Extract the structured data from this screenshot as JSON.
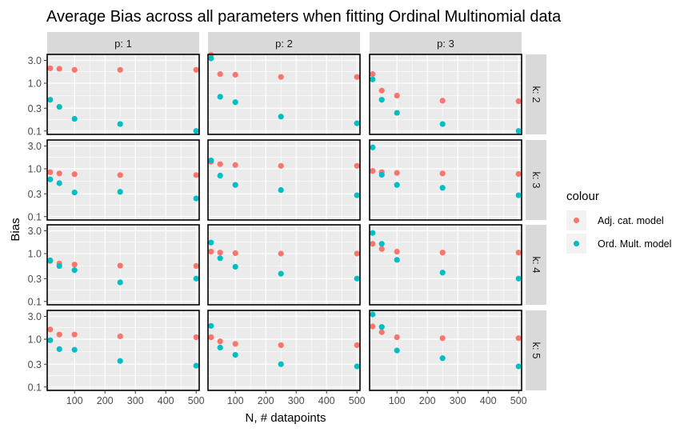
{
  "chart_data": {
    "type": "scatter",
    "title": "Average Bias across all parameters when fitting Ordinal Multinomial data",
    "xlabel": "N, # datapoints",
    "ylabel": "Bias",
    "y_scale": "log10",
    "x_range": [
      10,
      510
    ],
    "y_range": [
      0.085,
      4.0
    ],
    "x_ticks": [
      100,
      200,
      300,
      400,
      500
    ],
    "y_ticks": [
      {
        "value": 0.1,
        "label": "0.1"
      },
      {
        "value": 0.3,
        "label": "0.3"
      },
      {
        "value": 1.0,
        "label": "1.0"
      },
      {
        "value": 3.0,
        "label": "3.0"
      }
    ],
    "col_facet_labels": [
      "p: 1",
      "p: 2",
      "p: 3"
    ],
    "row_facet_labels": [
      "k: 2",
      "k: 3",
      "k: 4",
      "k: 5"
    ],
    "legend": {
      "title": "colour",
      "position": "right",
      "entries": [
        {
          "name": "Adj. cat. model",
          "color": "#F8766D"
        },
        {
          "name": "Ord. Mult. model",
          "color": "#00BFC4"
        }
      ]
    },
    "grid": true,
    "x": [
      20,
      50,
      100,
      250,
      500
    ],
    "panels": [
      {
        "k": 2,
        "p": 1,
        "adj": [
          2.05,
          2.0,
          1.9,
          1.9,
          1.9
        ],
        "ord": [
          0.45,
          0.32,
          0.18,
          0.14,
          0.1
        ]
      },
      {
        "k": 2,
        "p": 2,
        "adj": [
          3.9,
          1.55,
          1.5,
          1.35,
          1.35
        ],
        "ord": [
          3.3,
          0.52,
          0.4,
          0.2,
          0.145
        ]
      },
      {
        "k": 2,
        "p": 3,
        "adj": [
          1.55,
          0.7,
          0.55,
          0.43,
          0.42
        ],
        "ord": [
          1.2,
          0.45,
          0.24,
          0.14,
          0.1
        ]
      },
      {
        "k": 3,
        "p": 1,
        "adj": [
          0.85,
          0.8,
          0.77,
          0.74,
          0.74
        ],
        "ord": [
          0.6,
          0.5,
          0.32,
          0.33,
          0.24
        ]
      },
      {
        "k": 3,
        "p": 2,
        "adj": [
          1.4,
          1.25,
          1.2,
          1.15,
          1.15
        ],
        "ord": [
          1.5,
          0.72,
          0.46,
          0.36,
          0.28
        ]
      },
      {
        "k": 3,
        "p": 3,
        "adj": [
          0.9,
          0.85,
          0.82,
          0.8,
          0.78
        ],
        "ord": [
          2.8,
          0.75,
          0.46,
          0.4,
          0.28
        ]
      },
      {
        "k": 4,
        "p": 1,
        "adj": [
          0.7,
          0.62,
          0.59,
          0.56,
          0.55
        ],
        "ord": [
          0.72,
          0.55,
          0.45,
          0.25,
          0.3
        ]
      },
      {
        "k": 4,
        "p": 2,
        "adj": [
          1.1,
          1.05,
          1.02,
          1.0,
          1.0
        ],
        "ord": [
          1.7,
          0.8,
          0.53,
          0.38,
          0.3
        ]
      },
      {
        "k": 4,
        "p": 3,
        "adj": [
          1.6,
          1.25,
          1.1,
          1.05,
          1.05
        ],
        "ord": [
          2.7,
          1.6,
          0.74,
          0.4,
          0.3
        ]
      },
      {
        "k": 5,
        "p": 1,
        "adj": [
          1.6,
          1.25,
          1.25,
          1.15,
          1.1
        ],
        "ord": [
          0.95,
          0.62,
          0.6,
          0.35,
          0.28
        ]
      },
      {
        "k": 5,
        "p": 2,
        "adj": [
          1.1,
          0.9,
          0.8,
          0.75,
          0.75
        ],
        "ord": [
          1.9,
          0.67,
          0.47,
          0.3,
          0.27
        ]
      },
      {
        "k": 5,
        "p": 3,
        "adj": [
          1.85,
          1.4,
          1.1,
          1.05,
          1.05
        ],
        "ord": [
          3.3,
          1.8,
          0.58,
          0.4,
          0.27
        ]
      }
    ]
  }
}
